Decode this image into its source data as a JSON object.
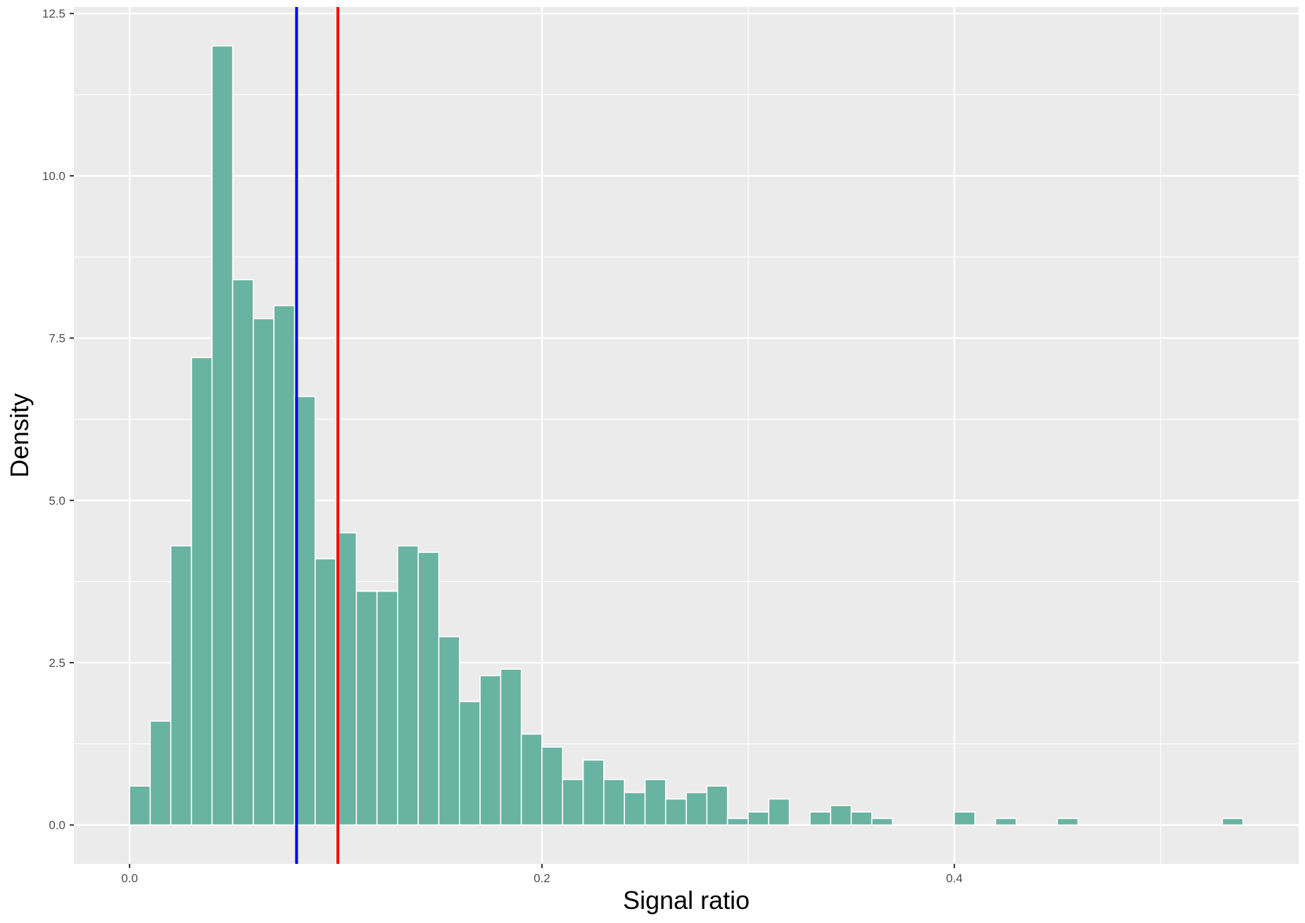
{
  "chart_data": {
    "type": "bar",
    "title": "",
    "xlabel": "Signal ratio",
    "ylabel": "Density",
    "xlim": [
      -0.027,
      0.567
    ],
    "ylim": [
      -0.6,
      12.6
    ],
    "x_ticks": [
      0.0,
      0.2,
      0.4
    ],
    "x_tick_labels": [
      "0.0",
      "0.2",
      "0.4"
    ],
    "y_ticks": [
      0.0,
      2.5,
      5.0,
      7.5,
      10.0,
      12.5
    ],
    "y_tick_labels": [
      "0.0",
      "2.5",
      "5.0",
      "7.5",
      "10.0",
      "12.5"
    ],
    "grid": true,
    "bin_width": 0.01,
    "bins_start": 0.0,
    "values": [
      0.6,
      1.6,
      4.3,
      7.2,
      12.0,
      8.4,
      7.8,
      8.0,
      6.6,
      4.1,
      4.5,
      3.6,
      3.6,
      4.3,
      4.2,
      2.9,
      1.9,
      2.3,
      2.4,
      1.4,
      1.2,
      0.7,
      1.0,
      0.7,
      0.5,
      0.7,
      0.4,
      0.5,
      0.6,
      0.1,
      0.2,
      0.4,
      0.0,
      0.2,
      0.3,
      0.2,
      0.1,
      0.0,
      0.0,
      0.0,
      0.2,
      0.0,
      0.1,
      0.0,
      0.0,
      0.1,
      0.0,
      0.0,
      0.0,
      0.0,
      0.0,
      0.0,
      0.0,
      0.1
    ],
    "vlines": [
      {
        "x": 0.081,
        "color": "#0000ff"
      },
      {
        "x": 0.101,
        "color": "#ff0000"
      }
    ],
    "colors": {
      "bar_fill": "#69b3a2",
      "bar_outline": "#ffffff",
      "panel_background": "#ebebeb",
      "grid": "#ffffff"
    }
  }
}
